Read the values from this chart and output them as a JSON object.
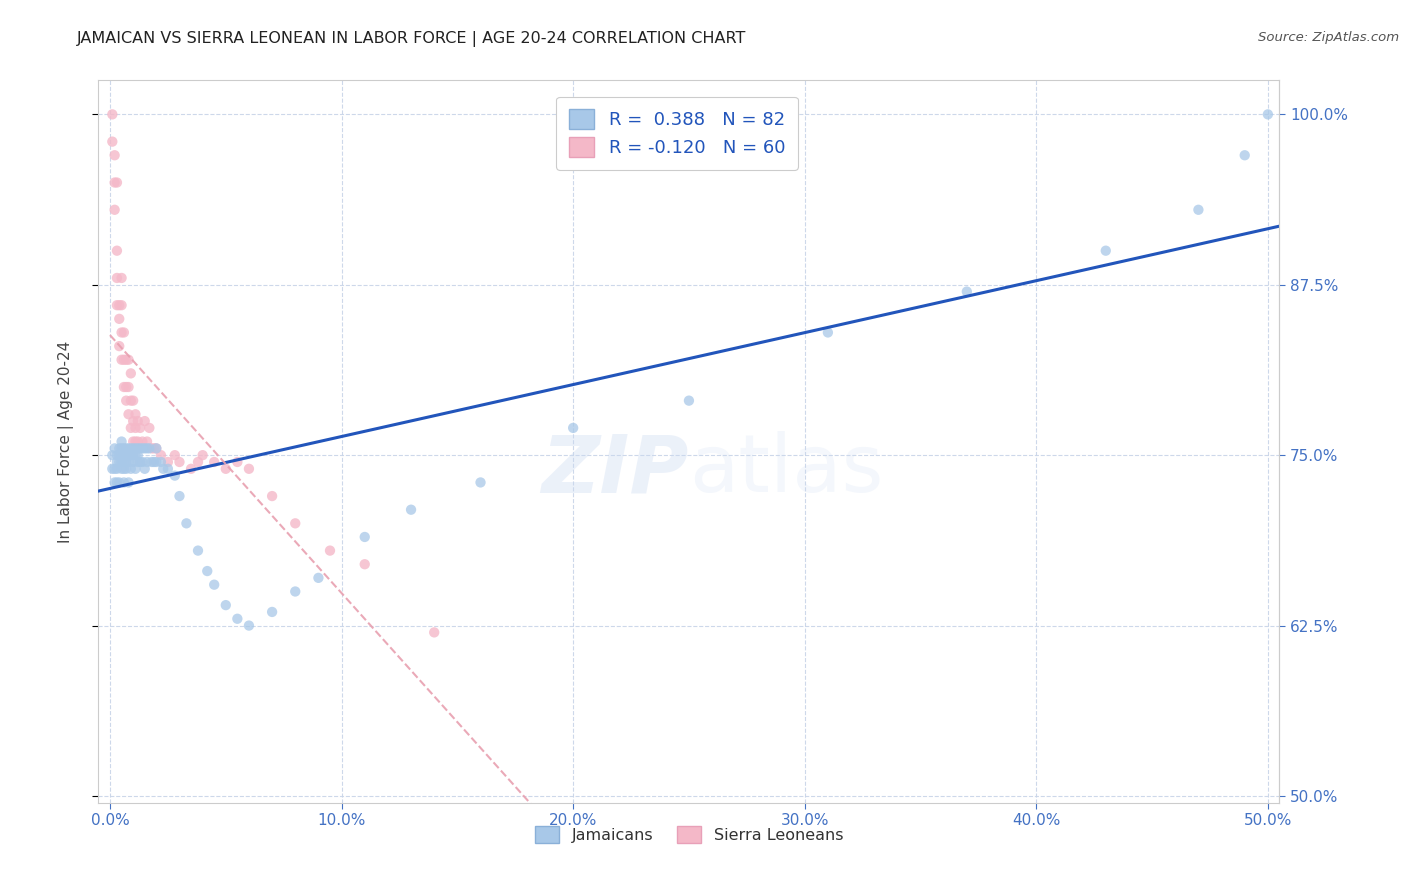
{
  "title": "JAMAICAN VS SIERRA LEONEAN IN LABOR FORCE | AGE 20-24 CORRELATION CHART",
  "source": "Source: ZipAtlas.com",
  "ylabel": "In Labor Force | Age 20-24",
  "xlim": [
    -0.005,
    0.505
  ],
  "ylim": [
    0.495,
    1.025
  ],
  "yticks": [
    0.5,
    0.625,
    0.75,
    0.875,
    1.0
  ],
  "ytick_labels": [
    "50.0%",
    "62.5%",
    "75.0%",
    "87.5%",
    "100.0%"
  ],
  "xticks": [
    0.0,
    0.1,
    0.2,
    0.3,
    0.4,
    0.5
  ],
  "xtick_labels": [
    "0.0%",
    "10.0%",
    "20.0%",
    "30.0%",
    "40.0%",
    "50.0%"
  ],
  "jamaican_R": 0.388,
  "jamaican_N": 82,
  "sierra_R": -0.12,
  "sierra_N": 60,
  "blue_color": "#a8c8e8",
  "pink_color": "#f4b8c8",
  "trend_blue": "#2255bb",
  "trend_pink": "#e8a0b0",
  "background_color": "#ffffff",
  "grid_color": "#c8d4e8",
  "watermark": "ZIPatlas",
  "jamaican_x": [
    0.001,
    0.001,
    0.002,
    0.002,
    0.002,
    0.003,
    0.003,
    0.003,
    0.003,
    0.004,
    0.004,
    0.004,
    0.004,
    0.005,
    0.005,
    0.005,
    0.005,
    0.005,
    0.006,
    0.006,
    0.006,
    0.006,
    0.006,
    0.007,
    0.007,
    0.007,
    0.007,
    0.008,
    0.008,
    0.008,
    0.008,
    0.009,
    0.009,
    0.009,
    0.01,
    0.01,
    0.01,
    0.011,
    0.011,
    0.011,
    0.012,
    0.012,
    0.012,
    0.013,
    0.013,
    0.014,
    0.014,
    0.015,
    0.015,
    0.016,
    0.016,
    0.017,
    0.018,
    0.019,
    0.02,
    0.02,
    0.022,
    0.023,
    0.025,
    0.028,
    0.03,
    0.033,
    0.038,
    0.042,
    0.045,
    0.05,
    0.055,
    0.06,
    0.07,
    0.08,
    0.09,
    0.11,
    0.13,
    0.16,
    0.2,
    0.25,
    0.31,
    0.37,
    0.43,
    0.47,
    0.49,
    0.5
  ],
  "jamaican_y": [
    0.75,
    0.74,
    0.755,
    0.74,
    0.73,
    0.75,
    0.745,
    0.74,
    0.73,
    0.755,
    0.75,
    0.745,
    0.73,
    0.76,
    0.755,
    0.75,
    0.745,
    0.74,
    0.755,
    0.75,
    0.745,
    0.74,
    0.73,
    0.755,
    0.75,
    0.745,
    0.74,
    0.755,
    0.75,
    0.745,
    0.73,
    0.755,
    0.75,
    0.74,
    0.755,
    0.75,
    0.745,
    0.755,
    0.75,
    0.74,
    0.755,
    0.75,
    0.745,
    0.755,
    0.745,
    0.755,
    0.745,
    0.755,
    0.74,
    0.755,
    0.745,
    0.755,
    0.745,
    0.745,
    0.755,
    0.745,
    0.745,
    0.74,
    0.74,
    0.735,
    0.72,
    0.7,
    0.68,
    0.665,
    0.655,
    0.64,
    0.63,
    0.625,
    0.635,
    0.65,
    0.66,
    0.69,
    0.71,
    0.73,
    0.77,
    0.79,
    0.84,
    0.87,
    0.9,
    0.93,
    0.97,
    1.0
  ],
  "sierra_x": [
    0.001,
    0.001,
    0.002,
    0.002,
    0.002,
    0.003,
    0.003,
    0.003,
    0.003,
    0.004,
    0.004,
    0.004,
    0.005,
    0.005,
    0.005,
    0.005,
    0.006,
    0.006,
    0.006,
    0.007,
    0.007,
    0.007,
    0.008,
    0.008,
    0.008,
    0.009,
    0.009,
    0.009,
    0.01,
    0.01,
    0.01,
    0.011,
    0.011,
    0.011,
    0.012,
    0.012,
    0.013,
    0.014,
    0.015,
    0.016,
    0.017,
    0.018,
    0.019,
    0.02,
    0.022,
    0.025,
    0.028,
    0.03,
    0.035,
    0.038,
    0.04,
    0.045,
    0.05,
    0.055,
    0.06,
    0.07,
    0.08,
    0.095,
    0.11,
    0.14
  ],
  "sierra_y": [
    1.0,
    0.98,
    0.97,
    0.95,
    0.93,
    0.95,
    0.9,
    0.88,
    0.86,
    0.86,
    0.85,
    0.83,
    0.88,
    0.86,
    0.84,
    0.82,
    0.84,
    0.82,
    0.8,
    0.82,
    0.8,
    0.79,
    0.82,
    0.8,
    0.78,
    0.81,
    0.79,
    0.77,
    0.79,
    0.775,
    0.76,
    0.78,
    0.77,
    0.76,
    0.775,
    0.76,
    0.77,
    0.76,
    0.775,
    0.76,
    0.77,
    0.755,
    0.755,
    0.755,
    0.75,
    0.745,
    0.75,
    0.745,
    0.74,
    0.745,
    0.75,
    0.745,
    0.74,
    0.745,
    0.74,
    0.72,
    0.7,
    0.68,
    0.67,
    0.62
  ]
}
